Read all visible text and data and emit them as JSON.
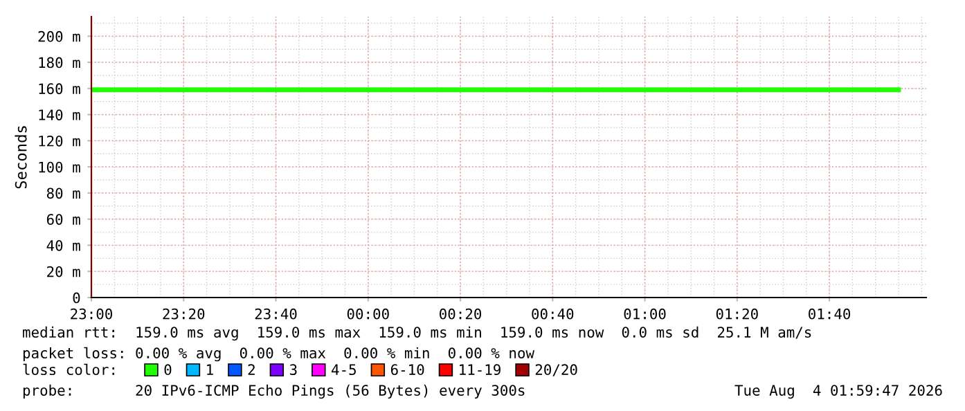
{
  "chart_data": {
    "type": "line",
    "ylabel": "Seconds",
    "x": [
      "2026-08-03T23:00",
      "2026-08-04T01:55"
    ],
    "series": [
      {
        "name": "0",
        "color": "#20ff00",
        "values": [
          159,
          159
        ]
      },
      {
        "name": "1",
        "color": "#00b8ff",
        "values": [
          null,
          null
        ]
      },
      {
        "name": "2",
        "color": "#0059ff",
        "values": [
          null,
          null
        ]
      },
      {
        "name": "3",
        "color": "#7e00ff",
        "values": [
          null,
          null
        ]
      },
      {
        "name": "4-5",
        "color": "#ff00ff",
        "values": [
          null,
          null
        ]
      },
      {
        "name": "6-10",
        "color": "#ff5500",
        "values": [
          null,
          null
        ]
      },
      {
        "name": "11-19",
        "color": "#ff0000",
        "values": [
          null,
          null
        ]
      },
      {
        "name": "20/20",
        "color": "#a10000",
        "values": [
          null,
          null
        ]
      }
    ],
    "legend": "bottom",
    "legend_title": "loss color:",
    "xlim": [
      "2026-08-03T23:00",
      "2026-08-04T02:01"
    ],
    "xticks": [
      {
        "value": "2026-08-03T23:00",
        "label": "23:00"
      },
      {
        "value": "2026-08-03T23:20",
        "label": "23:20"
      },
      {
        "value": "2026-08-03T23:40",
        "label": "23:40"
      },
      {
        "value": "2026-08-04T00:00",
        "label": "00:00"
      },
      {
        "value": "2026-08-04T00:20",
        "label": "00:20"
      },
      {
        "value": "2026-08-04T00:40",
        "label": "00:40"
      },
      {
        "value": "2026-08-04T01:00",
        "label": "01:00"
      },
      {
        "value": "2026-08-04T01:20",
        "label": "01:20"
      },
      {
        "value": "2026-08-04T01:40",
        "label": "01:40"
      }
    ],
    "ylim": [
      0,
      215
    ],
    "yticks": [
      0,
      {
        "value": 20,
        "label": "20 m"
      },
      {
        "value": 40,
        "label": "40 m"
      },
      {
        "value": 60,
        "label": "60 m"
      },
      {
        "value": 80,
        "label": "80 m"
      },
      {
        "value": 100,
        "label": "100 m"
      },
      {
        "value": 120,
        "label": "120 m"
      },
      {
        "value": 140,
        "label": "140 m"
      },
      {
        "value": 160,
        "label": "160 m"
      },
      {
        "value": 180,
        "label": "180 m"
      },
      {
        "value": 200,
        "label": "200 m"
      }
    ],
    "grid": true,
    "marker": "none",
    "line_style": "solid",
    "annotations": [
      "median rtt:  159.0 ms avg  159.0 ms max  159.0 ms min  159.0 ms now  0.0 ms sd  25.1 M am/s",
      "packet loss: 0.00 % avg  0.00 % max  0.00 % min  0.00 % now",
      "probe:       20 IPv6-ICMP Echo Pings (56 Bytes) every 300s",
      "Tue Aug  4 01:59:47 2026"
    ]
  }
}
